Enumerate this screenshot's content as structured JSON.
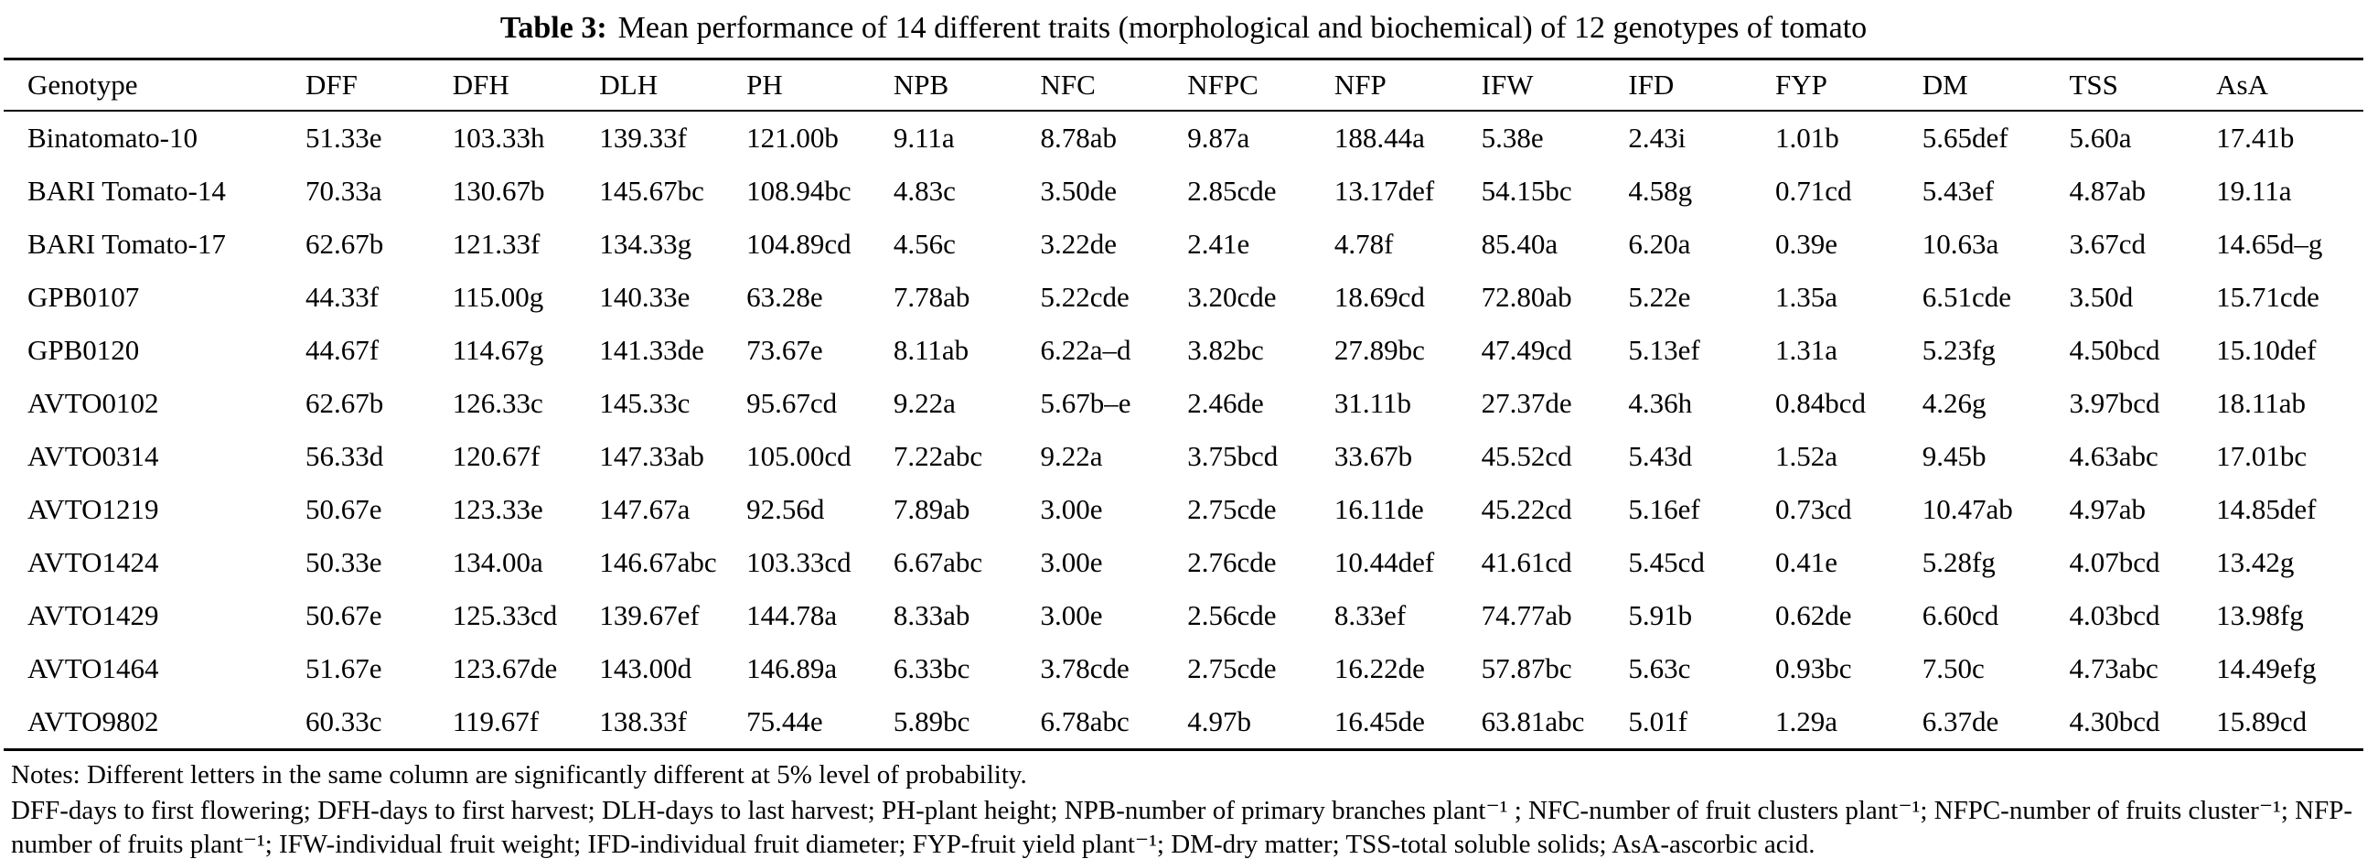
{
  "title": {
    "label": "Table 3:",
    "caption": "Mean performance of 14 different traits (morphological and biochemical) of 12 genotypes of tomato"
  },
  "table": {
    "columns": [
      "Genotype",
      "DFF",
      "DFH",
      "DLH",
      "PH",
      "NPB",
      "NFC",
      "NFPC",
      "NFP",
      "IFW",
      "IFD",
      "FYP",
      "DM",
      "TSS",
      "AsA"
    ],
    "rows": [
      [
        "Binatomato-10",
        "51.33e",
        "103.33h",
        "139.33f",
        "121.00b",
        "9.11a",
        "8.78ab",
        "9.87a",
        "188.44a",
        "5.38e",
        "2.43i",
        "1.01b",
        "5.65def",
        "5.60a",
        "17.41b"
      ],
      [
        "BARI Tomato-14",
        "70.33a",
        "130.67b",
        "145.67bc",
        "108.94bc",
        "4.83c",
        "3.50de",
        "2.85cde",
        "13.17def",
        "54.15bc",
        "4.58g",
        "0.71cd",
        "5.43ef",
        "4.87ab",
        "19.11a"
      ],
      [
        "BARI Tomato-17",
        "62.67b",
        "121.33f",
        "134.33g",
        "104.89cd",
        "4.56c",
        "3.22de",
        "2.41e",
        "4.78f",
        "85.40a",
        "6.20a",
        "0.39e",
        "10.63a",
        "3.67cd",
        "14.65d–g"
      ],
      [
        "GPB0107",
        "44.33f",
        "115.00g",
        "140.33e",
        "63.28e",
        "7.78ab",
        "5.22cde",
        "3.20cde",
        "18.69cd",
        "72.80ab",
        "5.22e",
        "1.35a",
        "6.51cde",
        "3.50d",
        "15.71cde"
      ],
      [
        "GPB0120",
        "44.67f",
        "114.67g",
        "141.33de",
        "73.67e",
        "8.11ab",
        "6.22a–d",
        "3.82bc",
        "27.89bc",
        "47.49cd",
        "5.13ef",
        "1.31a",
        "5.23fg",
        "4.50bcd",
        "15.10def"
      ],
      [
        "AVTO0102",
        "62.67b",
        "126.33c",
        "145.33c",
        "95.67cd",
        "9.22a",
        "5.67b–e",
        "2.46de",
        "31.11b",
        "27.37de",
        "4.36h",
        "0.84bcd",
        "4.26g",
        "3.97bcd",
        "18.11ab"
      ],
      [
        "AVTO0314",
        "56.33d",
        "120.67f",
        "147.33ab",
        "105.00cd",
        "7.22abc",
        "9.22a",
        "3.75bcd",
        "33.67b",
        "45.52cd",
        "5.43d",
        "1.52a",
        "9.45b",
        "4.63abc",
        "17.01bc"
      ],
      [
        "AVTO1219",
        "50.67e",
        "123.33e",
        "147.67a",
        "92.56d",
        "7.89ab",
        "3.00e",
        "2.75cde",
        "16.11de",
        "45.22cd",
        "5.16ef",
        "0.73cd",
        "10.47ab",
        "4.97ab",
        "14.85def"
      ],
      [
        "AVTO1424",
        "50.33e",
        "134.00a",
        "146.67abc",
        "103.33cd",
        "6.67abc",
        "3.00e",
        "2.76cde",
        "10.44def",
        "41.61cd",
        "5.45cd",
        "0.41e",
        "5.28fg",
        "4.07bcd",
        "13.42g"
      ],
      [
        "AVTO1429",
        "50.67e",
        "125.33cd",
        "139.67ef",
        "144.78a",
        "8.33ab",
        "3.00e",
        "2.56cde",
        "8.33ef",
        "74.77ab",
        "5.91b",
        "0.62de",
        "6.60cd",
        "4.03bcd",
        "13.98fg"
      ],
      [
        "AVTO1464",
        "51.67e",
        "123.67de",
        "143.00d",
        "146.89a",
        "6.33bc",
        "3.78cde",
        "2.75cde",
        "16.22de",
        "57.87bc",
        "5.63c",
        "0.93bc",
        "7.50c",
        "4.73abc",
        "14.49efg"
      ],
      [
        "AVTO9802",
        "60.33c",
        "119.67f",
        "138.33f",
        "75.44e",
        "5.89bc",
        "6.78abc",
        "4.97b",
        "16.45de",
        "63.81abc",
        "5.01f",
        "1.29a",
        "6.37de",
        "4.30bcd",
        "15.89cd"
      ]
    ]
  },
  "notes": {
    "line1": "Notes: Different letters in the same column are significantly different at 5% level of probability.",
    "line2": "DFF-days to first flowering; DFH-days to first harvest; DLH-days to last harvest; PH-plant height; NPB-number of primary branches plant⁻¹ ; NFC-number of fruit clusters plant⁻¹; NFPC-number of fruits cluster⁻¹; NFP-number of fruits plant⁻¹; IFW-individual fruit weight; IFD-individual fruit diameter; FYP-fruit yield plant⁻¹; DM-dry matter; TSS-total soluble solids; AsA-ascorbic acid."
  }
}
